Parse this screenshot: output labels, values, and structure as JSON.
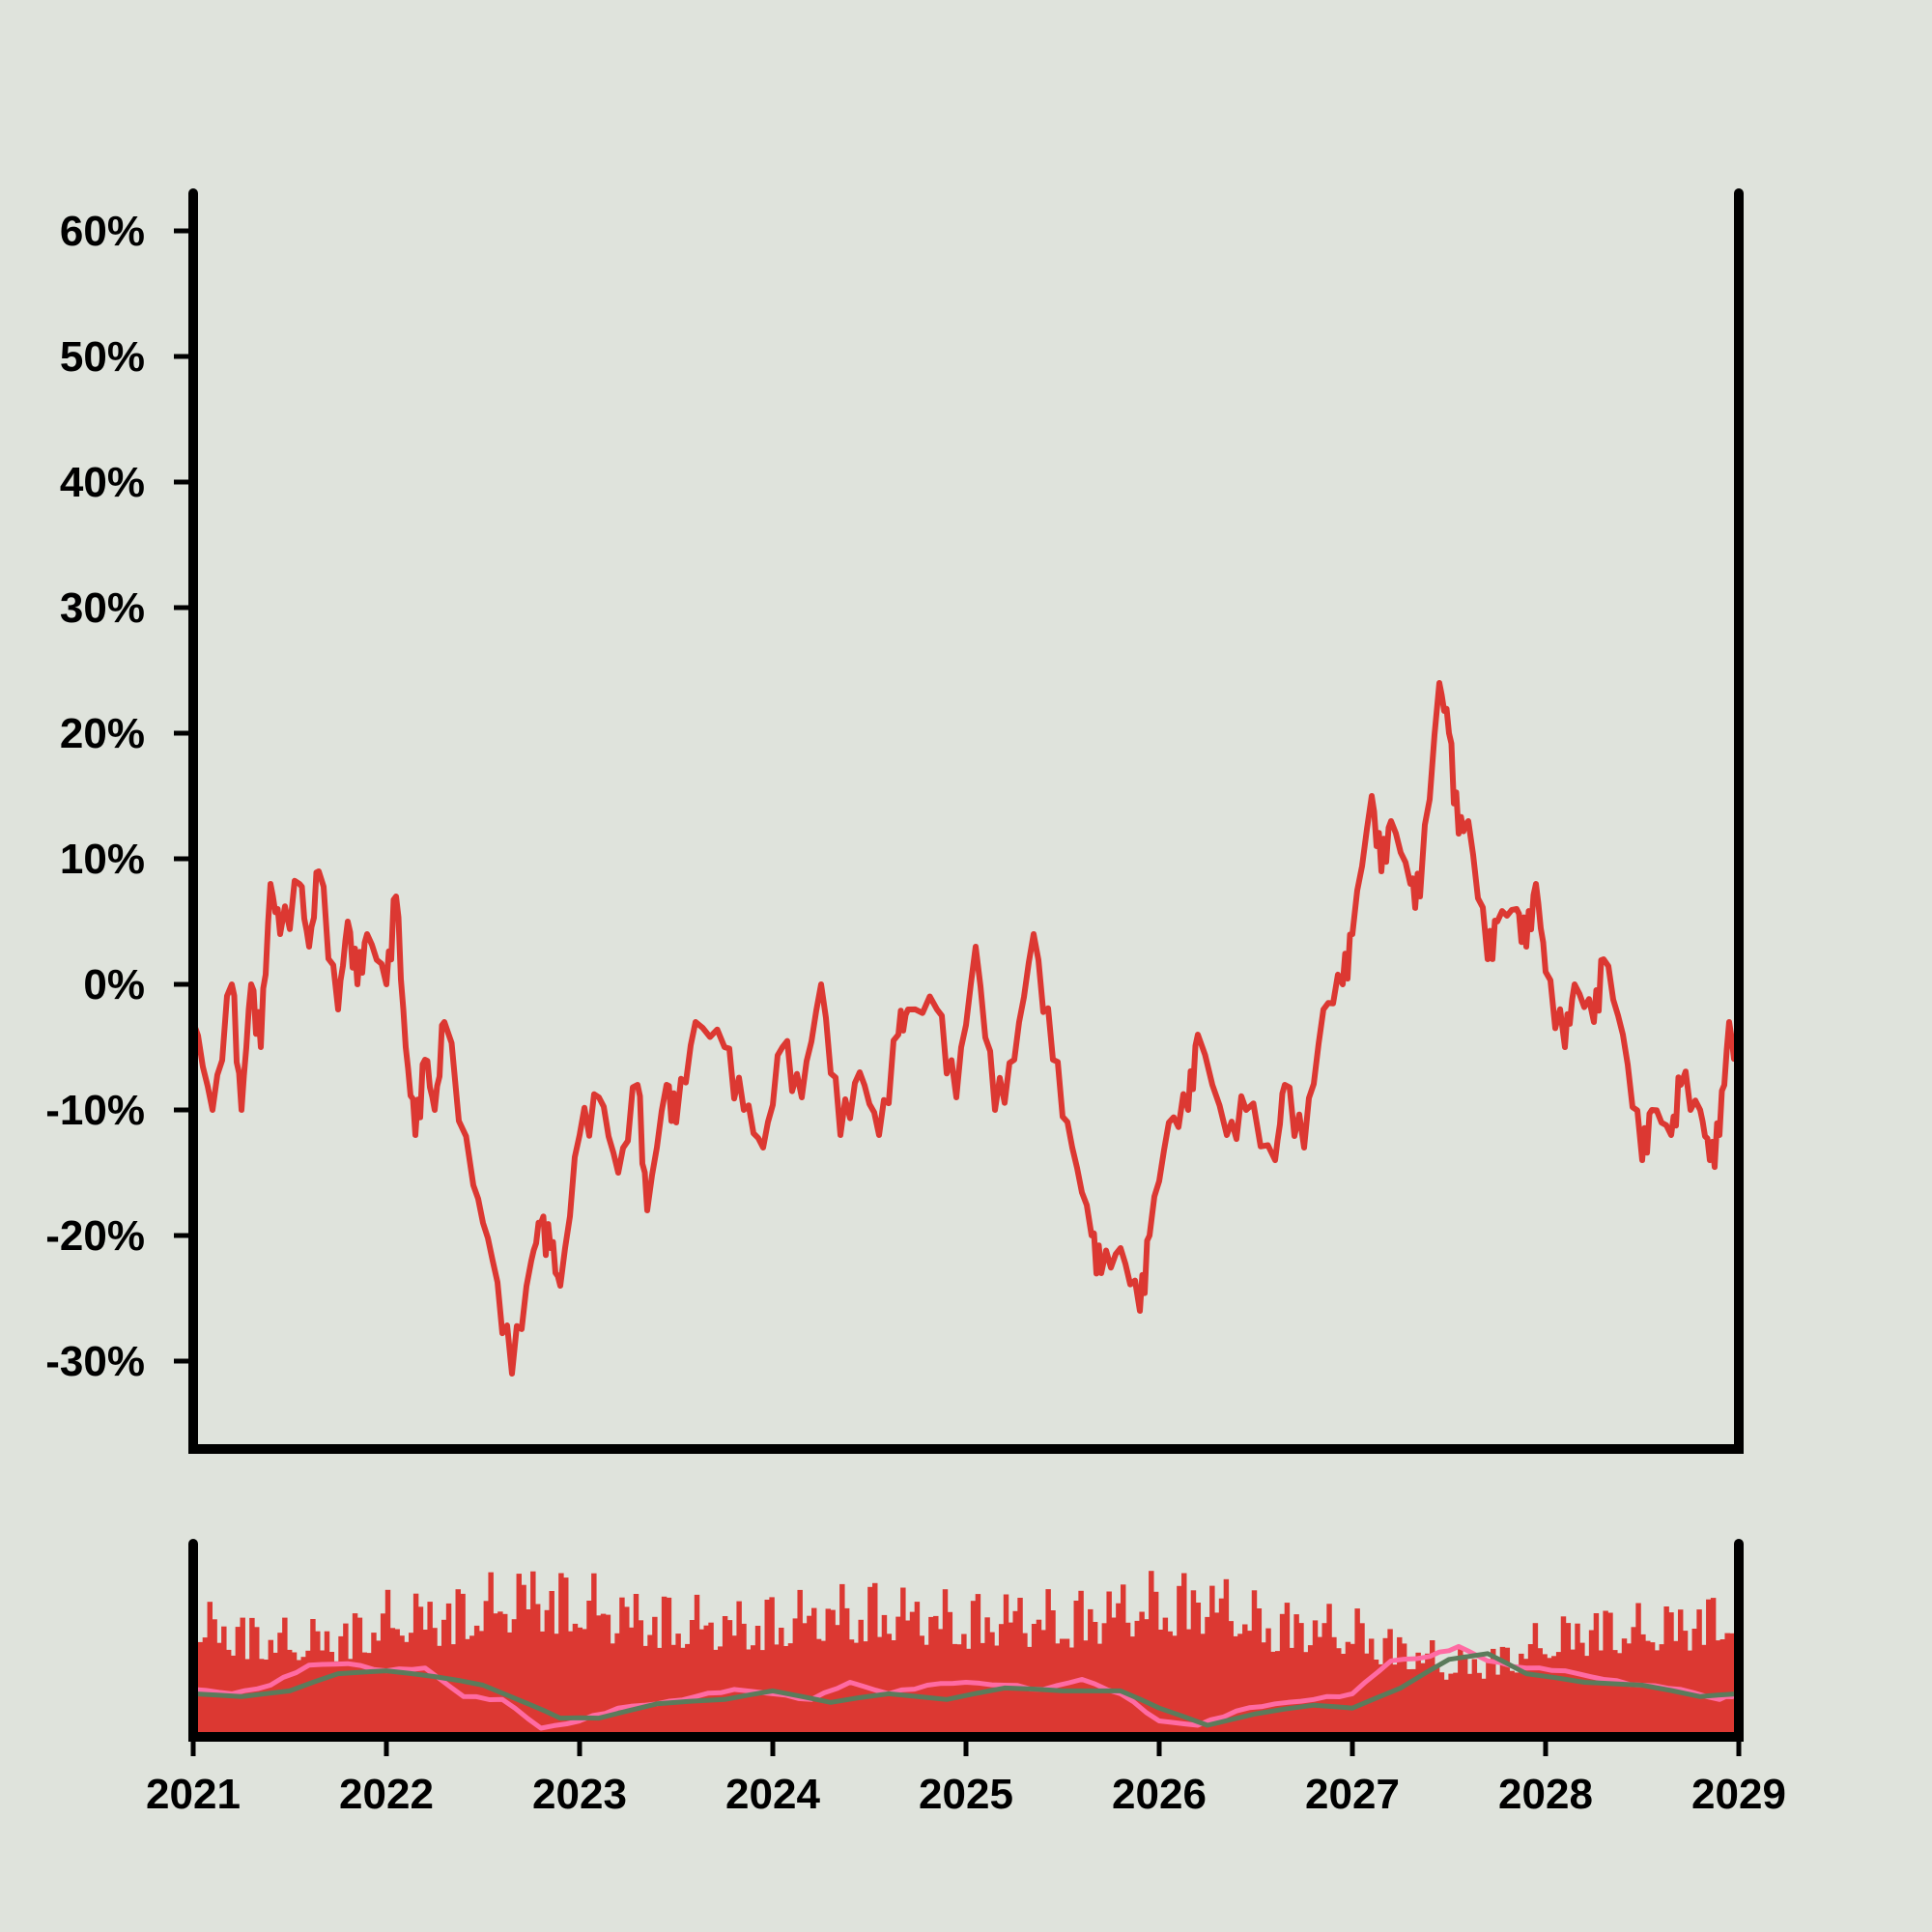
{
  "chart_data": {
    "type": "line",
    "title": "",
    "xlabel": "",
    "ylabel": "",
    "colors": {
      "background": "#dfe3dc",
      "price_line": "#dc3832",
      "volume_bars": "#dc3832",
      "volume_ma_short": "#ff6ba3",
      "volume_ma_long": "#5b7b5b",
      "axes": "#000000"
    },
    "x_ticks": [
      "2021",
      "2022",
      "2023",
      "2024",
      "2025",
      "2026",
      "2027",
      "2028",
      "2029"
    ],
    "xlim": [
      2021.0,
      2029.0
    ],
    "y_ticks": [
      "60%",
      "50%",
      "40%",
      "30%",
      "20%",
      "10%",
      "0%",
      "-10%",
      "-20%",
      "-30%"
    ],
    "ylim": [
      -37,
      63
    ],
    "grid": false,
    "legend": "none",
    "series": [
      {
        "kind": "price-line",
        "x": [
          2021.0,
          2021.1,
          2021.2,
          2021.25,
          2021.3,
          2021.35,
          2021.4,
          2021.45,
          2021.55,
          2021.6,
          2021.65,
          2021.75,
          2021.8,
          2021.85,
          2021.9,
          2022.0,
          2022.05,
          2022.1,
          2022.15,
          2022.2,
          2022.25,
          2022.3,
          2022.45,
          2022.55,
          2022.65,
          2022.75,
          2022.8,
          2022.85,
          2022.9,
          2023.0,
          2023.1,
          2023.2,
          2023.3,
          2023.35,
          2023.45,
          2023.5,
          2023.6,
          2023.75,
          2023.85,
          2023.95,
          2024.05,
          2024.15,
          2024.25,
          2024.35,
          2024.45,
          2024.55,
          2024.65,
          2024.7,
          2024.85,
          2024.95,
          2025.05,
          2025.15,
          2025.25,
          2025.35,
          2025.45,
          2025.55,
          2025.65,
          2025.7,
          2025.8,
          2025.9,
          2025.95,
          2026.05,
          2026.15,
          2026.2,
          2026.35,
          2026.45,
          2026.6,
          2026.65,
          2026.75,
          2026.85,
          2026.95,
          2027.0,
          2027.1,
          2027.15,
          2027.2,
          2027.3,
          2027.35,
          2027.45,
          2027.5,
          2027.55,
          2027.6,
          2027.7,
          2027.75,
          2027.85,
          2027.9,
          2027.95,
          2028.0,
          2028.1,
          2028.15,
          2028.25,
          2028.3,
          2028.4,
          2028.5,
          2028.55,
          2028.65,
          2028.7,
          2028.8,
          2028.85,
          2028.9,
          2028.95,
          2029.0
        ],
        "values": [
          -3,
          -10,
          0,
          -10,
          0,
          -5,
          8,
          4,
          8,
          3,
          9,
          -2,
          5,
          0,
          4,
          0,
          7,
          -5,
          -12,
          -6,
          -10,
          -3,
          -16,
          -22,
          -31,
          -22,
          -19,
          -21,
          -24,
          -12,
          -9,
          -15,
          -8,
          -18,
          -8,
          -11,
          -3,
          -5,
          -10,
          -13,
          -5,
          -9,
          0,
          -12,
          -7,
          -12,
          -4,
          -2,
          -2,
          -9,
          3,
          -10,
          -6,
          4,
          -6,
          -13,
          -20,
          -23,
          -21,
          -26,
          -20,
          -11,
          -10,
          -4,
          -12,
          -10,
          -14,
          -8,
          -13,
          -2,
          0,
          4,
          15,
          9,
          13,
          8,
          7,
          24,
          20,
          12,
          13,
          2,
          5,
          6,
          3,
          8,
          1,
          -5,
          0,
          -3,
          2,
          -4,
          -14,
          -10,
          -12,
          -8,
          -10,
          -14,
          -12,
          -3,
          -8
        ]
      },
      {
        "kind": "volume-bars",
        "x": [
          2021.0,
          2021.25,
          2021.5,
          2021.75,
          2022.0,
          2022.25,
          2022.5,
          2022.75,
          2023.0,
          2023.25,
          2023.5,
          2023.75,
          2024.0,
          2024.25,
          2024.5,
          2024.75,
          2025.0,
          2025.25,
          2025.5,
          2025.75,
          2026.0,
          2026.25,
          2026.5,
          2026.75,
          2027.0,
          2027.25,
          2027.5,
          2027.75,
          2028.0,
          2028.25,
          2028.5,
          2028.75,
          2029.0
        ],
        "values": [
          90,
          85,
          75,
          80,
          95,
          100,
          105,
          120,
          110,
          100,
          95,
          90,
          95,
          100,
          105,
          100,
          95,
          100,
          95,
          105,
          110,
          115,
          95,
          90,
          85,
          70,
          55,
          60,
          75,
          90,
          85,
          95,
          100
        ]
      },
      {
        "kind": "volume-ma-short",
        "x": [
          2021.0,
          2021.2,
          2021.4,
          2021.6,
          2021.8,
          2022.0,
          2022.2,
          2022.4,
          2022.6,
          2022.8,
          2023.0,
          2023.2,
          2023.4,
          2023.6,
          2023.8,
          2024.0,
          2024.2,
          2024.4,
          2024.6,
          2024.8,
          2025.0,
          2025.2,
          2025.4,
          2025.6,
          2025.8,
          2026.0,
          2026.2,
          2026.4,
          2026.6,
          2026.8,
          2027.0,
          2027.2,
          2027.4,
          2027.55,
          2027.7,
          2027.9,
          2028.1,
          2028.3,
          2028.5,
          2028.7,
          2028.9,
          2029.0
        ],
        "values": [
          25,
          22,
          28,
          42,
          43,
          38,
          40,
          20,
          18,
          -2,
          3,
          12,
          15,
          20,
          25,
          22,
          18,
          30,
          22,
          28,
          30,
          28,
          25,
          32,
          22,
          3,
          0,
          10,
          15,
          18,
          22,
          45,
          48,
          55,
          45,
          40,
          38,
          32,
          28,
          25,
          18,
          22
        ]
      },
      {
        "kind": "volume-ma-long",
        "x": [
          2021.0,
          2021.25,
          2021.5,
          2021.75,
          2022.0,
          2022.25,
          2022.5,
          2022.75,
          2022.9,
          2023.1,
          2023.4,
          2023.75,
          2024.0,
          2024.3,
          2024.6,
          2024.9,
          2025.2,
          2025.5,
          2025.8,
          2026.0,
          2026.25,
          2026.5,
          2026.8,
          2027.0,
          2027.25,
          2027.5,
          2027.7,
          2027.9,
          2028.2,
          2028.5,
          2028.8,
          2029.0
        ],
        "values": [
          22,
          20,
          24,
          36,
          38,
          34,
          28,
          14,
          5,
          5,
          15,
          18,
          24,
          16,
          22,
          18,
          26,
          24,
          24,
          12,
          0,
          8,
          14,
          12,
          26,
          46,
          50,
          36,
          30,
          28,
          20,
          22
        ]
      }
    ]
  }
}
